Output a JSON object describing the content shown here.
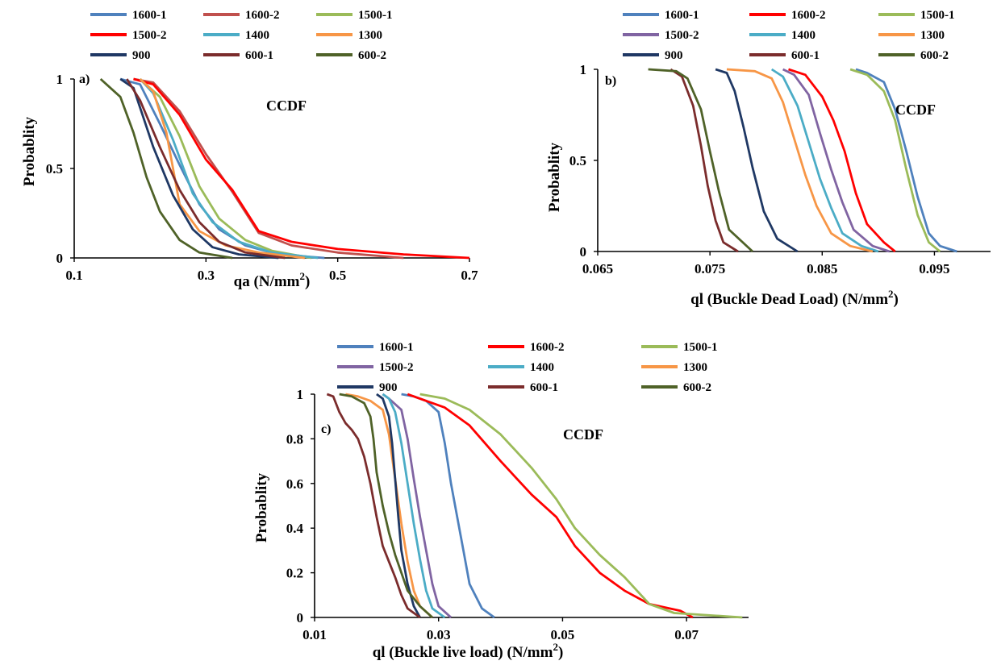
{
  "chart_data": [
    {
      "type": "line",
      "panel_label": "a)",
      "annotation": "CCDF",
      "xlabel": "qa (N/mm",
      "xlabel_sup": "2",
      "xlabel_tail": ")",
      "ylabel": "Probablity",
      "xlim": [
        0.1,
        0.7
      ],
      "ylim": [
        0,
        1
      ],
      "xticks": [
        "0.1",
        "0.3",
        "0.5",
        "0.7"
      ],
      "yticks": [
        "0",
        "0.5",
        "1"
      ],
      "series": [
        {
          "name": "1600-1",
          "color": "#4f81bd",
          "x": [
            0.17,
            0.2,
            0.23,
            0.26,
            0.29,
            0.32,
            0.36,
            0.41,
            0.48
          ],
          "y": [
            1,
            0.97,
            0.75,
            0.52,
            0.3,
            0.16,
            0.07,
            0.02,
            0
          ]
        },
        {
          "name": "1600-2",
          "color": "#c0504d",
          "x": [
            0.19,
            0.22,
            0.26,
            0.3,
            0.34,
            0.38,
            0.43,
            0.5,
            0.6
          ],
          "y": [
            1,
            0.98,
            0.82,
            0.58,
            0.37,
            0.14,
            0.07,
            0.03,
            0
          ]
        },
        {
          "name": "1500-1",
          "color": "#9bbb59",
          "x": [
            0.2,
            0.23,
            0.26,
            0.29,
            0.32,
            0.36,
            0.4,
            0.46
          ],
          "y": [
            1,
            0.9,
            0.68,
            0.4,
            0.22,
            0.1,
            0.04,
            0
          ]
        },
        {
          "name": "1500-2",
          "color": "#ff0000",
          "x": [
            0.19,
            0.22,
            0.26,
            0.3,
            0.34,
            0.38,
            0.43,
            0.5,
            0.6,
            0.7
          ],
          "y": [
            1,
            0.97,
            0.8,
            0.55,
            0.38,
            0.15,
            0.09,
            0.05,
            0.02,
            0
          ]
        },
        {
          "name": "1400",
          "color": "#4bacc6",
          "x": [
            0.2,
            0.22,
            0.25,
            0.28,
            0.31,
            0.35,
            0.4,
            0.47
          ],
          "y": [
            1,
            0.92,
            0.66,
            0.36,
            0.2,
            0.09,
            0.03,
            0
          ]
        },
        {
          "name": "1300",
          "color": "#f79646",
          "x": [
            0.2,
            0.22,
            0.24,
            0.26,
            0.29,
            0.33,
            0.38,
            0.45
          ],
          "y": [
            1,
            0.93,
            0.7,
            0.3,
            0.15,
            0.07,
            0.03,
            0
          ]
        },
        {
          "name": "900",
          "color": "#1f3864",
          "x": [
            0.17,
            0.19,
            0.22,
            0.25,
            0.28,
            0.31,
            0.35,
            0.41
          ],
          "y": [
            1,
            0.95,
            0.62,
            0.35,
            0.16,
            0.06,
            0.02,
            0
          ]
        },
        {
          "name": "600-1",
          "color": "#7b2c2c",
          "x": [
            0.18,
            0.2,
            0.23,
            0.26,
            0.29,
            0.32,
            0.36,
            0.42
          ],
          "y": [
            1,
            0.88,
            0.62,
            0.38,
            0.2,
            0.09,
            0.03,
            0
          ]
        },
        {
          "name": "600-2",
          "color": "#4f6228",
          "x": [
            0.14,
            0.17,
            0.19,
            0.21,
            0.23,
            0.26,
            0.29,
            0.34
          ],
          "y": [
            1,
            0.9,
            0.7,
            0.45,
            0.26,
            0.1,
            0.03,
            0
          ]
        }
      ]
    },
    {
      "type": "line",
      "panel_label": "b)",
      "annotation": "CCDF",
      "xlabel": "ql (Buckle Dead Load) (N/mm",
      "xlabel_sup": "2",
      "xlabel_tail": ")",
      "ylabel": "Probablity",
      "xlim": [
        0.065,
        0.1
      ],
      "ylim": [
        0,
        1
      ],
      "xticks": [
        "0.065",
        "0.075",
        "0.085",
        "0.095"
      ],
      "yticks": [
        "0",
        "0.5",
        "1"
      ],
      "series": [
        {
          "name": "1600-1",
          "color": "#4f81bd",
          "x": [
            0.088,
            0.089,
            0.0905,
            0.0915,
            0.0925,
            0.0935,
            0.0945,
            0.0955,
            0.097
          ],
          "y": [
            1,
            0.98,
            0.93,
            0.78,
            0.55,
            0.3,
            0.1,
            0.03,
            0
          ]
        },
        {
          "name": "1600-2",
          "color": "#ff0000",
          "x": [
            0.082,
            0.0835,
            0.085,
            0.086,
            0.087,
            0.088,
            0.089,
            0.0905,
            0.0915
          ],
          "y": [
            1,
            0.97,
            0.85,
            0.72,
            0.55,
            0.32,
            0.15,
            0.05,
            0
          ]
        },
        {
          "name": "1500-1",
          "color": "#9bbb59",
          "x": [
            0.0875,
            0.089,
            0.0905,
            0.0915,
            0.0925,
            0.0935,
            0.0945,
            0.0955
          ],
          "y": [
            1,
            0.97,
            0.88,
            0.72,
            0.45,
            0.2,
            0.05,
            0
          ]
        },
        {
          "name": "1500-2",
          "color": "#8064a2",
          "x": [
            0.0815,
            0.0825,
            0.0838,
            0.0848,
            0.0858,
            0.0868,
            0.0878,
            0.0895,
            0.091
          ],
          "y": [
            1,
            0.97,
            0.86,
            0.65,
            0.45,
            0.27,
            0.12,
            0.03,
            0
          ]
        },
        {
          "name": "1400",
          "color": "#4bacc6",
          "x": [
            0.0805,
            0.0815,
            0.0828,
            0.0838,
            0.0848,
            0.0858,
            0.0868,
            0.0885,
            0.09
          ],
          "y": [
            1,
            0.96,
            0.8,
            0.6,
            0.4,
            0.24,
            0.1,
            0.03,
            0
          ]
        },
        {
          "name": "1300",
          "color": "#f79646",
          "x": [
            0.0765,
            0.079,
            0.0805,
            0.0815,
            0.0825,
            0.0835,
            0.0845,
            0.0858,
            0.0875,
            0.0895
          ],
          "y": [
            1,
            0.99,
            0.95,
            0.82,
            0.62,
            0.42,
            0.25,
            0.1,
            0.03,
            0
          ]
        },
        {
          "name": "900",
          "color": "#1f3864",
          "x": [
            0.0755,
            0.0765,
            0.0772,
            0.078,
            0.0788,
            0.0798,
            0.081,
            0.0828
          ],
          "y": [
            1,
            0.98,
            0.88,
            0.68,
            0.46,
            0.22,
            0.07,
            0
          ]
        },
        {
          "name": "600-1",
          "color": "#7b2c2c",
          "x": [
            0.0715,
            0.0725,
            0.0735,
            0.0742,
            0.0748,
            0.0755,
            0.0762,
            0.0775
          ],
          "y": [
            1,
            0.96,
            0.8,
            0.58,
            0.36,
            0.17,
            0.05,
            0
          ]
        },
        {
          "name": "600-2",
          "color": "#4f6228",
          "x": [
            0.0695,
            0.072,
            0.073,
            0.0742,
            0.075,
            0.0758,
            0.0767,
            0.0788
          ],
          "y": [
            1,
            0.99,
            0.95,
            0.78,
            0.55,
            0.33,
            0.12,
            0
          ]
        }
      ]
    },
    {
      "type": "line",
      "panel_label": "c)",
      "annotation": "CCDF",
      "xlabel": "ql (Buckle live load) (N/mm",
      "xlabel_sup": "2",
      "xlabel_tail": ")",
      "ylabel": "Probablity",
      "xlim": [
        0.01,
        0.08
      ],
      "ylim": [
        0,
        1
      ],
      "xticks": [
        "0.01",
        "0.03",
        "0.05",
        "0.07"
      ],
      "yticks": [
        "0",
        "0.2",
        "0.4",
        "0.6",
        "0.8",
        "1"
      ],
      "series": [
        {
          "name": "1600-1",
          "color": "#4f81bd",
          "x": [
            0.024,
            0.026,
            0.028,
            0.03,
            0.031,
            0.032,
            0.033,
            0.034,
            0.035,
            0.037,
            0.039
          ],
          "y": [
            1,
            0.99,
            0.97,
            0.92,
            0.78,
            0.6,
            0.45,
            0.3,
            0.15,
            0.04,
            0
          ]
        },
        {
          "name": "1600-2",
          "color": "#ff0000",
          "x": [
            0.025,
            0.028,
            0.031,
            0.035,
            0.04,
            0.045,
            0.049,
            0.052,
            0.056,
            0.06,
            0.064,
            0.069,
            0.071
          ],
          "y": [
            1,
            0.97,
            0.94,
            0.86,
            0.7,
            0.55,
            0.45,
            0.32,
            0.2,
            0.12,
            0.06,
            0.03,
            0
          ]
        },
        {
          "name": "1500-1",
          "color": "#9bbb59",
          "x": [
            0.027,
            0.031,
            0.035,
            0.04,
            0.045,
            0.049,
            0.052,
            0.056,
            0.06,
            0.064,
            0.068,
            0.079
          ],
          "y": [
            1,
            0.98,
            0.93,
            0.82,
            0.67,
            0.53,
            0.4,
            0.28,
            0.18,
            0.06,
            0.02,
            0
          ]
        },
        {
          "name": "1500-2",
          "color": "#8064a2",
          "x": [
            0.021,
            0.022,
            0.024,
            0.025,
            0.026,
            0.027,
            0.028,
            0.029,
            0.03,
            0.032
          ],
          "y": [
            1,
            0.98,
            0.93,
            0.8,
            0.62,
            0.45,
            0.3,
            0.15,
            0.05,
            0
          ]
        },
        {
          "name": "1400",
          "color": "#4bacc6",
          "x": [
            0.021,
            0.022,
            0.023,
            0.024,
            0.025,
            0.026,
            0.027,
            0.028,
            0.029,
            0.031
          ],
          "y": [
            1,
            0.98,
            0.92,
            0.78,
            0.6,
            0.42,
            0.26,
            0.12,
            0.04,
            0
          ]
        },
        {
          "name": "1300",
          "color": "#f79646",
          "x": [
            0.015,
            0.017,
            0.019,
            0.021,
            0.022,
            0.023,
            0.024,
            0.025,
            0.026,
            0.027,
            0.029
          ],
          "y": [
            1,
            0.99,
            0.97,
            0.93,
            0.82,
            0.62,
            0.42,
            0.25,
            0.12,
            0.05,
            0
          ]
        },
        {
          "name": "900",
          "color": "#1f3864",
          "x": [
            0.02,
            0.021,
            0.022,
            0.0225,
            0.023,
            0.0235,
            0.024,
            0.025,
            0.026,
            0.027
          ],
          "y": [
            1,
            0.98,
            0.9,
            0.78,
            0.62,
            0.45,
            0.3,
            0.15,
            0.05,
            0
          ]
        },
        {
          "name": "600-1",
          "color": "#7b2c2c",
          "x": [
            0.012,
            0.013,
            0.014,
            0.015,
            0.016,
            0.017,
            0.018,
            0.019,
            0.02,
            0.021,
            0.022,
            0.023,
            0.024,
            0.025,
            0.027
          ],
          "y": [
            1,
            0.99,
            0.92,
            0.87,
            0.84,
            0.8,
            0.72,
            0.6,
            0.45,
            0.32,
            0.25,
            0.18,
            0.1,
            0.04,
            0
          ]
        },
        {
          "name": "600-2",
          "color": "#4f6228",
          "x": [
            0.014,
            0.016,
            0.018,
            0.019,
            0.0195,
            0.02,
            0.021,
            0.022,
            0.023,
            0.024,
            0.025,
            0.027,
            0.029
          ],
          "y": [
            1,
            0.99,
            0.96,
            0.9,
            0.8,
            0.65,
            0.5,
            0.38,
            0.28,
            0.2,
            0.12,
            0.05,
            0
          ]
        }
      ]
    }
  ]
}
